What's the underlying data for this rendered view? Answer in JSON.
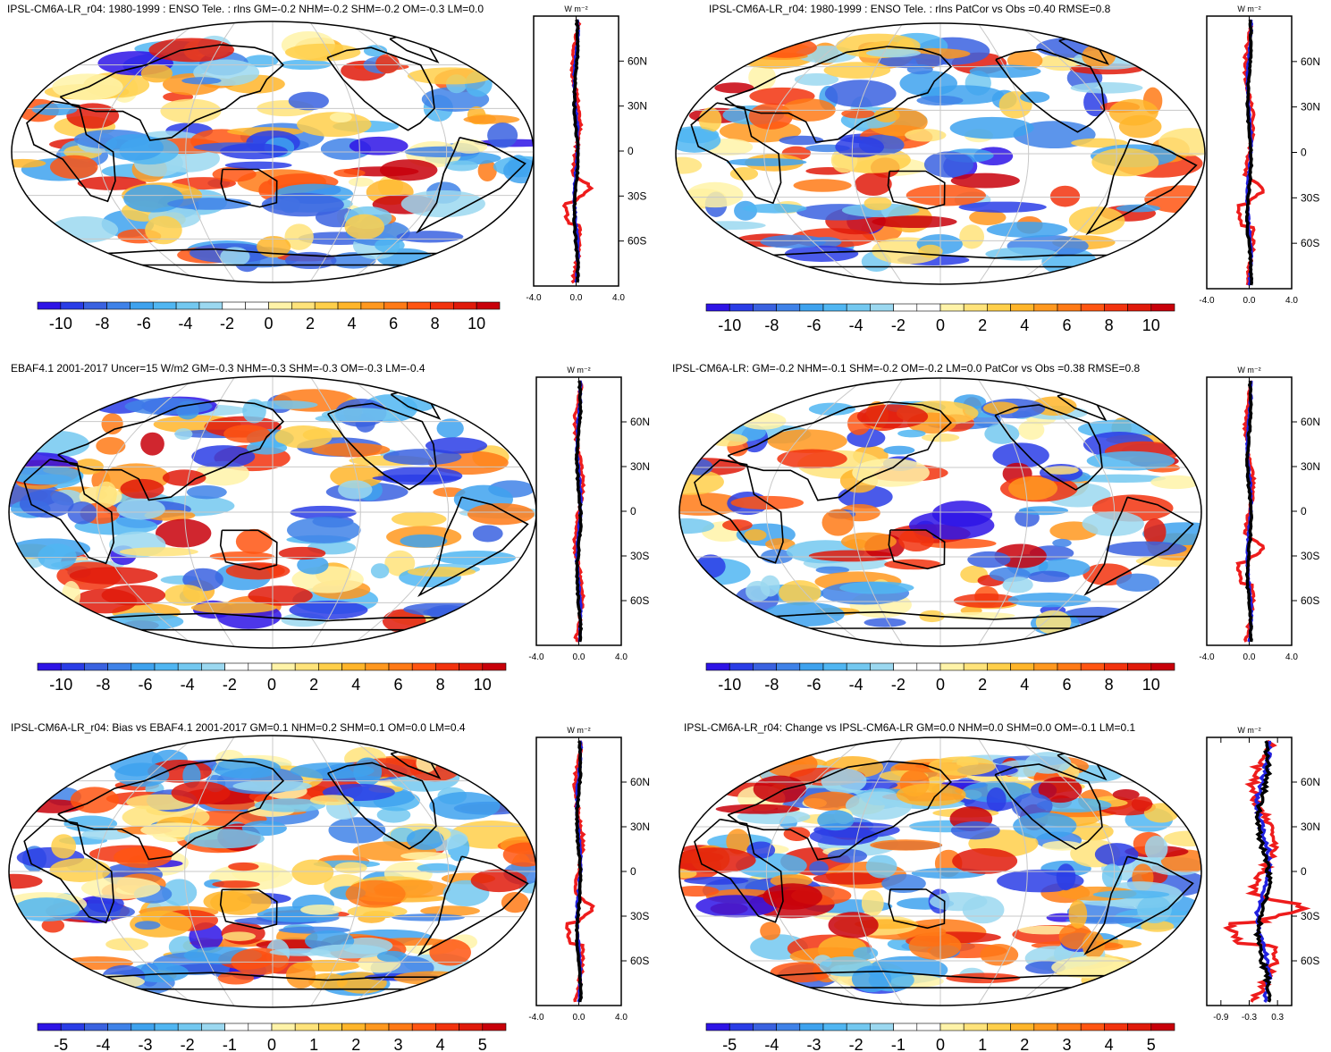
{
  "panels": [
    {
      "title": "IPSL-CM6A-LR_r04: 1980-1999 : ENSO Tele. : rlns GM=-0.2 NHM=-0.2 SHM=-0.2 OM=-0.3 LM=0.0",
      "colorbar": {
        "labels": [
          "-10",
          "-8",
          "-6",
          "-4",
          "-2",
          "0",
          "2",
          "4",
          "6",
          "8",
          "10"
        ],
        "range": [
          -11,
          11
        ]
      },
      "profile": {
        "unit": "W m⁻²",
        "lat_labels": [
          "60N",
          "30N",
          "0",
          "30S",
          "60S"
        ],
        "x_ticks": [
          "-4.0",
          "0.0",
          "4.0"
        ],
        "xlim": [
          -4.0,
          4.0
        ]
      }
    },
    {
      "title": "IPSL-CM6A-LR_r04: 1980-1999 : ENSO Tele. : rlns PatCor vs Obs =0.40 RMSE=0.8",
      "colorbar": {
        "labels": [
          "-10",
          "-8",
          "-6",
          "-4",
          "-2",
          "0",
          "2",
          "4",
          "6",
          "8",
          "10"
        ],
        "range": [
          -11,
          11
        ]
      },
      "profile": {
        "unit": "W m⁻²",
        "lat_labels": [
          "60N",
          "30N",
          "0",
          "30S",
          "60S"
        ],
        "x_ticks": [
          "-4.0",
          "0.0",
          "4.0"
        ],
        "xlim": [
          -4.0,
          4.0
        ]
      }
    },
    {
      "title": "EBAF4.1 2001-2017 Uncer=15 W/m2 GM=-0.3 NHM=-0.3 SHM=-0.3 OM=-0.3 LM=-0.4",
      "colorbar": {
        "labels": [
          "-10",
          "-8",
          "-6",
          "-4",
          "-2",
          "0",
          "2",
          "4",
          "6",
          "8",
          "10"
        ],
        "range": [
          -11,
          11
        ]
      },
      "profile": {
        "unit": "W m⁻²",
        "lat_labels": [
          "60N",
          "30N",
          "0",
          "30S",
          "60S"
        ],
        "x_ticks": [
          "-4.0",
          "0.0",
          "4.0"
        ],
        "xlim": [
          -4.0,
          4.0
        ]
      }
    },
    {
      "title": "IPSL-CM6A-LR: GM=-0.2 NHM=-0.1 SHM=-0.2 OM=-0.2 LM=0.0 PatCor vs Obs =0.38 RMSE=0.8",
      "colorbar": {
        "labels": [
          "-10",
          "-8",
          "-6",
          "-4",
          "-2",
          "0",
          "2",
          "4",
          "6",
          "8",
          "10"
        ],
        "range": [
          -11,
          11
        ]
      },
      "profile": {
        "unit": "W m⁻²",
        "lat_labels": [
          "60N",
          "30N",
          "0",
          "30S",
          "60S"
        ],
        "x_ticks": [
          "-4.0",
          "0.0",
          "4.0"
        ],
        "xlim": [
          -4.0,
          4.0
        ]
      }
    },
    {
      "title": "IPSL-CM6A-LR_r04: Bias vs EBAF4.1 2001-2017 GM=0.1 NHM=0.2 SHM=0.1 OM=0.0 LM=0.4",
      "colorbar": {
        "labels": [
          "-5",
          "-4",
          "-3",
          "-2",
          "-1",
          "0",
          "1",
          "2",
          "3",
          "4",
          "5"
        ],
        "range": [
          -5.5,
          5.5
        ]
      },
      "profile": {
        "unit": "W m⁻²",
        "lat_labels": [
          "60N",
          "30N",
          "0",
          "30S",
          "60S"
        ],
        "x_ticks": [
          "-4.0",
          "0.0",
          "4.0"
        ],
        "xlim": [
          -4.0,
          4.0
        ]
      }
    },
    {
      "title": "IPSL-CM6A-LR_r04: Change vs IPSL-CM6A-LR GM=0.0 NHM=0.0 SHM=0.0 OM=-0.1 LM=0.1",
      "colorbar": {
        "labels": [
          "-5",
          "-4",
          "-3",
          "-2",
          "-1",
          "0",
          "1",
          "2",
          "3",
          "4",
          "5"
        ],
        "range": [
          -5.5,
          5.5
        ]
      },
      "profile": {
        "unit": "W m⁻²",
        "lat_labels": [
          "60N",
          "30N",
          "0",
          "30S",
          "60S"
        ],
        "x_ticks": [
          "-0.9",
          "-0.3",
          "0.3"
        ],
        "xlim": [
          -1.2,
          0.6
        ]
      }
    }
  ],
  "palette": [
    "#2e14e6",
    "#2a3de6",
    "#3a62e0",
    "#3f82e8",
    "#3ea2ee",
    "#50b6f2",
    "#73c8f0",
    "#9bd8f0",
    "#ffffff",
    "#ffffff",
    "#fff3a8",
    "#ffe37a",
    "#ffcf4a",
    "#ffb52a",
    "#ff981f",
    "#ff7a16",
    "#ff5512",
    "#f2330e",
    "#e01a0a",
    "#c8000a"
  ],
  "profile_series": [
    {
      "name": "model",
      "color": "#ee1c1c"
    },
    {
      "name": "obs",
      "color": "#2020e0"
    },
    {
      "name": "other",
      "color": "#000000"
    }
  ]
}
